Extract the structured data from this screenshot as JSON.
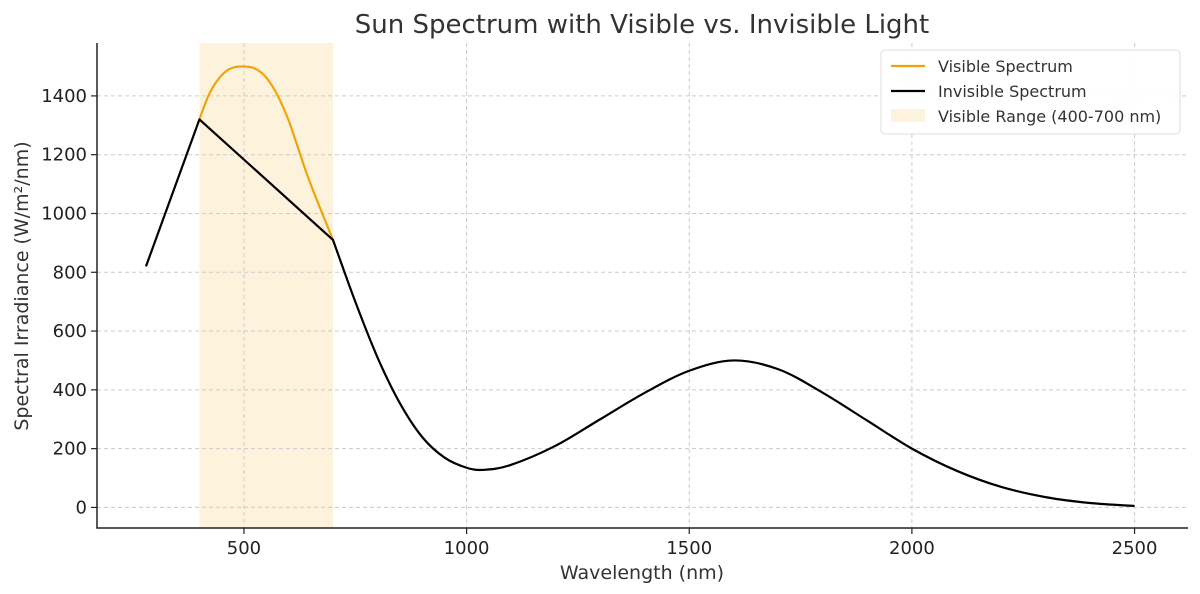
{
  "chart_data": {
    "type": "line",
    "title": "Sun Spectrum with Visible vs. Invisible Light",
    "xlabel": "Wavelength (nm)",
    "ylabel": "Spectral Irradiance (W/m²/nm)",
    "xlim": [
      170,
      2620
    ],
    "ylim": [
      -70,
      1580
    ],
    "xticks": [
      500,
      1000,
      1500,
      2000,
      2500
    ],
    "yticks": [
      0,
      200,
      400,
      600,
      800,
      1000,
      1200,
      1400
    ],
    "grid": true,
    "legend_position": "top-right",
    "shaded_region": {
      "name": "Visible Range (400-700 nm)",
      "x": [
        400,
        700
      ],
      "color": "#fdf2dc"
    },
    "series": [
      {
        "name": "Visible Spectrum",
        "color": "#f0a30a",
        "x": [
          400,
          420,
          440,
          460,
          480,
          500,
          520,
          540,
          560,
          580,
          600,
          620,
          640,
          660,
          680,
          700
        ],
        "y": [
          1320,
          1400,
          1452,
          1484,
          1498,
          1500,
          1496,
          1478,
          1442,
          1388,
          1318,
          1230,
          1140,
          1060,
          985,
          910
        ]
      },
      {
        "name": "Invisible Spectrum",
        "color": "#000000",
        "x": [
          280,
          400,
          700,
          750,
          800,
          850,
          900,
          950,
          1000,
          1040,
          1100,
          1200,
          1300,
          1400,
          1500,
          1600,
          1700,
          1800,
          1900,
          2000,
          2100,
          2200,
          2300,
          2400,
          2500
        ],
        "y": [
          820,
          1320,
          910,
          700,
          510,
          355,
          240,
          170,
          135,
          128,
          145,
          210,
          300,
          390,
          465,
          500,
          470,
          390,
          295,
          200,
          125,
          70,
          35,
          15,
          5
        ]
      }
    ]
  }
}
